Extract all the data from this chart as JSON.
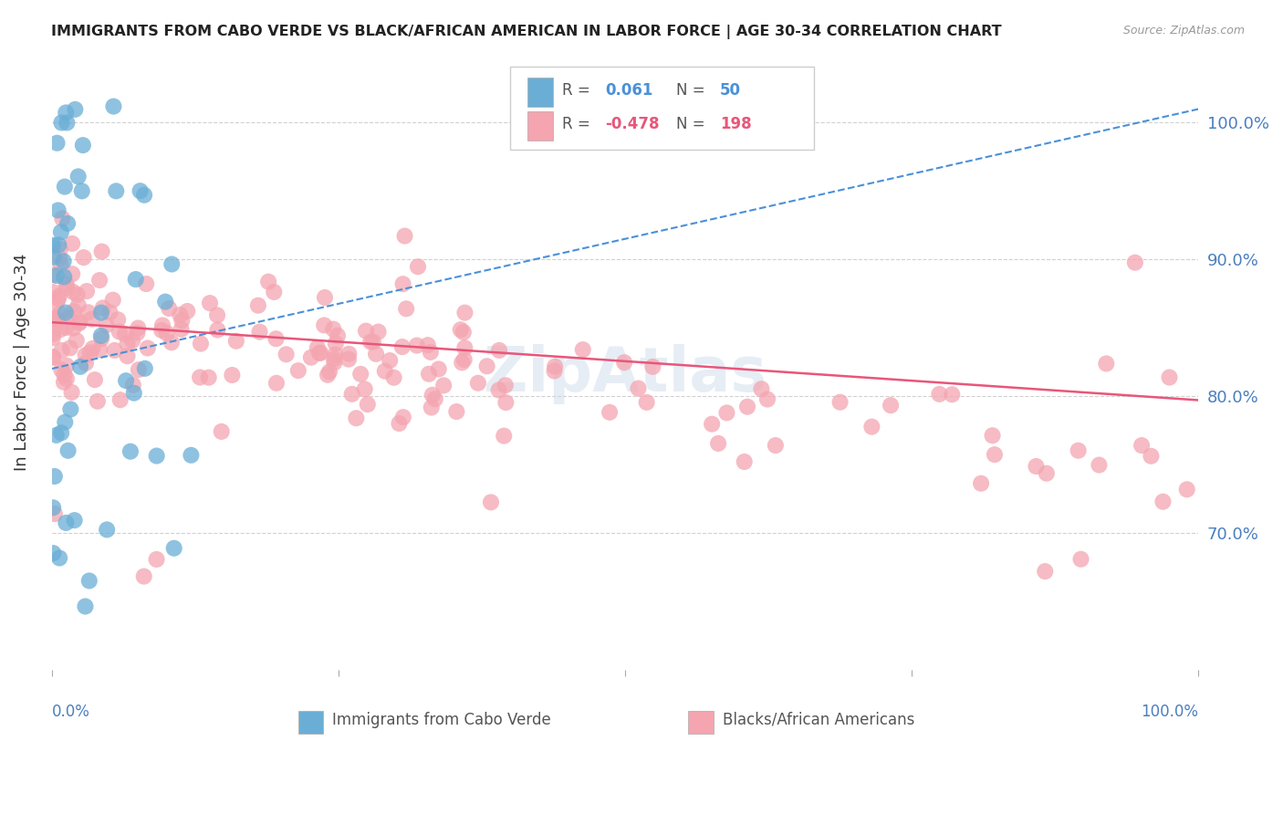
{
  "title": "IMMIGRANTS FROM CABO VERDE VS BLACK/AFRICAN AMERICAN IN LABOR FORCE | AGE 30-34 CORRELATION CHART",
  "source": "Source: ZipAtlas.com",
  "ylabel": "In Labor Force | Age 30-34",
  "ytick_labels": [
    "70.0%",
    "80.0%",
    "90.0%",
    "100.0%"
  ],
  "ytick_values": [
    0.7,
    0.8,
    0.9,
    1.0
  ],
  "xlim": [
    0.0,
    1.0
  ],
  "ylim": [
    0.6,
    1.05
  ],
  "legend_r_blue": "0.061",
  "legend_n_blue": "50",
  "legend_r_pink": "-0.478",
  "legend_n_pink": "198",
  "legend_label_blue": "Immigrants from Cabo Verde",
  "legend_label_pink": "Blacks/African Americans",
  "blue_color": "#6aaed6",
  "pink_color": "#f4a5b0",
  "blue_line_color": "#4a90d9",
  "pink_line_color": "#e8567a",
  "axis_label_color": "#4a7fbf",
  "title_color": "#222222",
  "watermark_text": "ZipAtlas",
  "background_color": "#ffffff",
  "grid_color": "#cccccc",
  "blue_trend_start": 0.82,
  "blue_trend_end": 1.01,
  "pink_trend_start": 0.854,
  "pink_trend_end": 0.797
}
